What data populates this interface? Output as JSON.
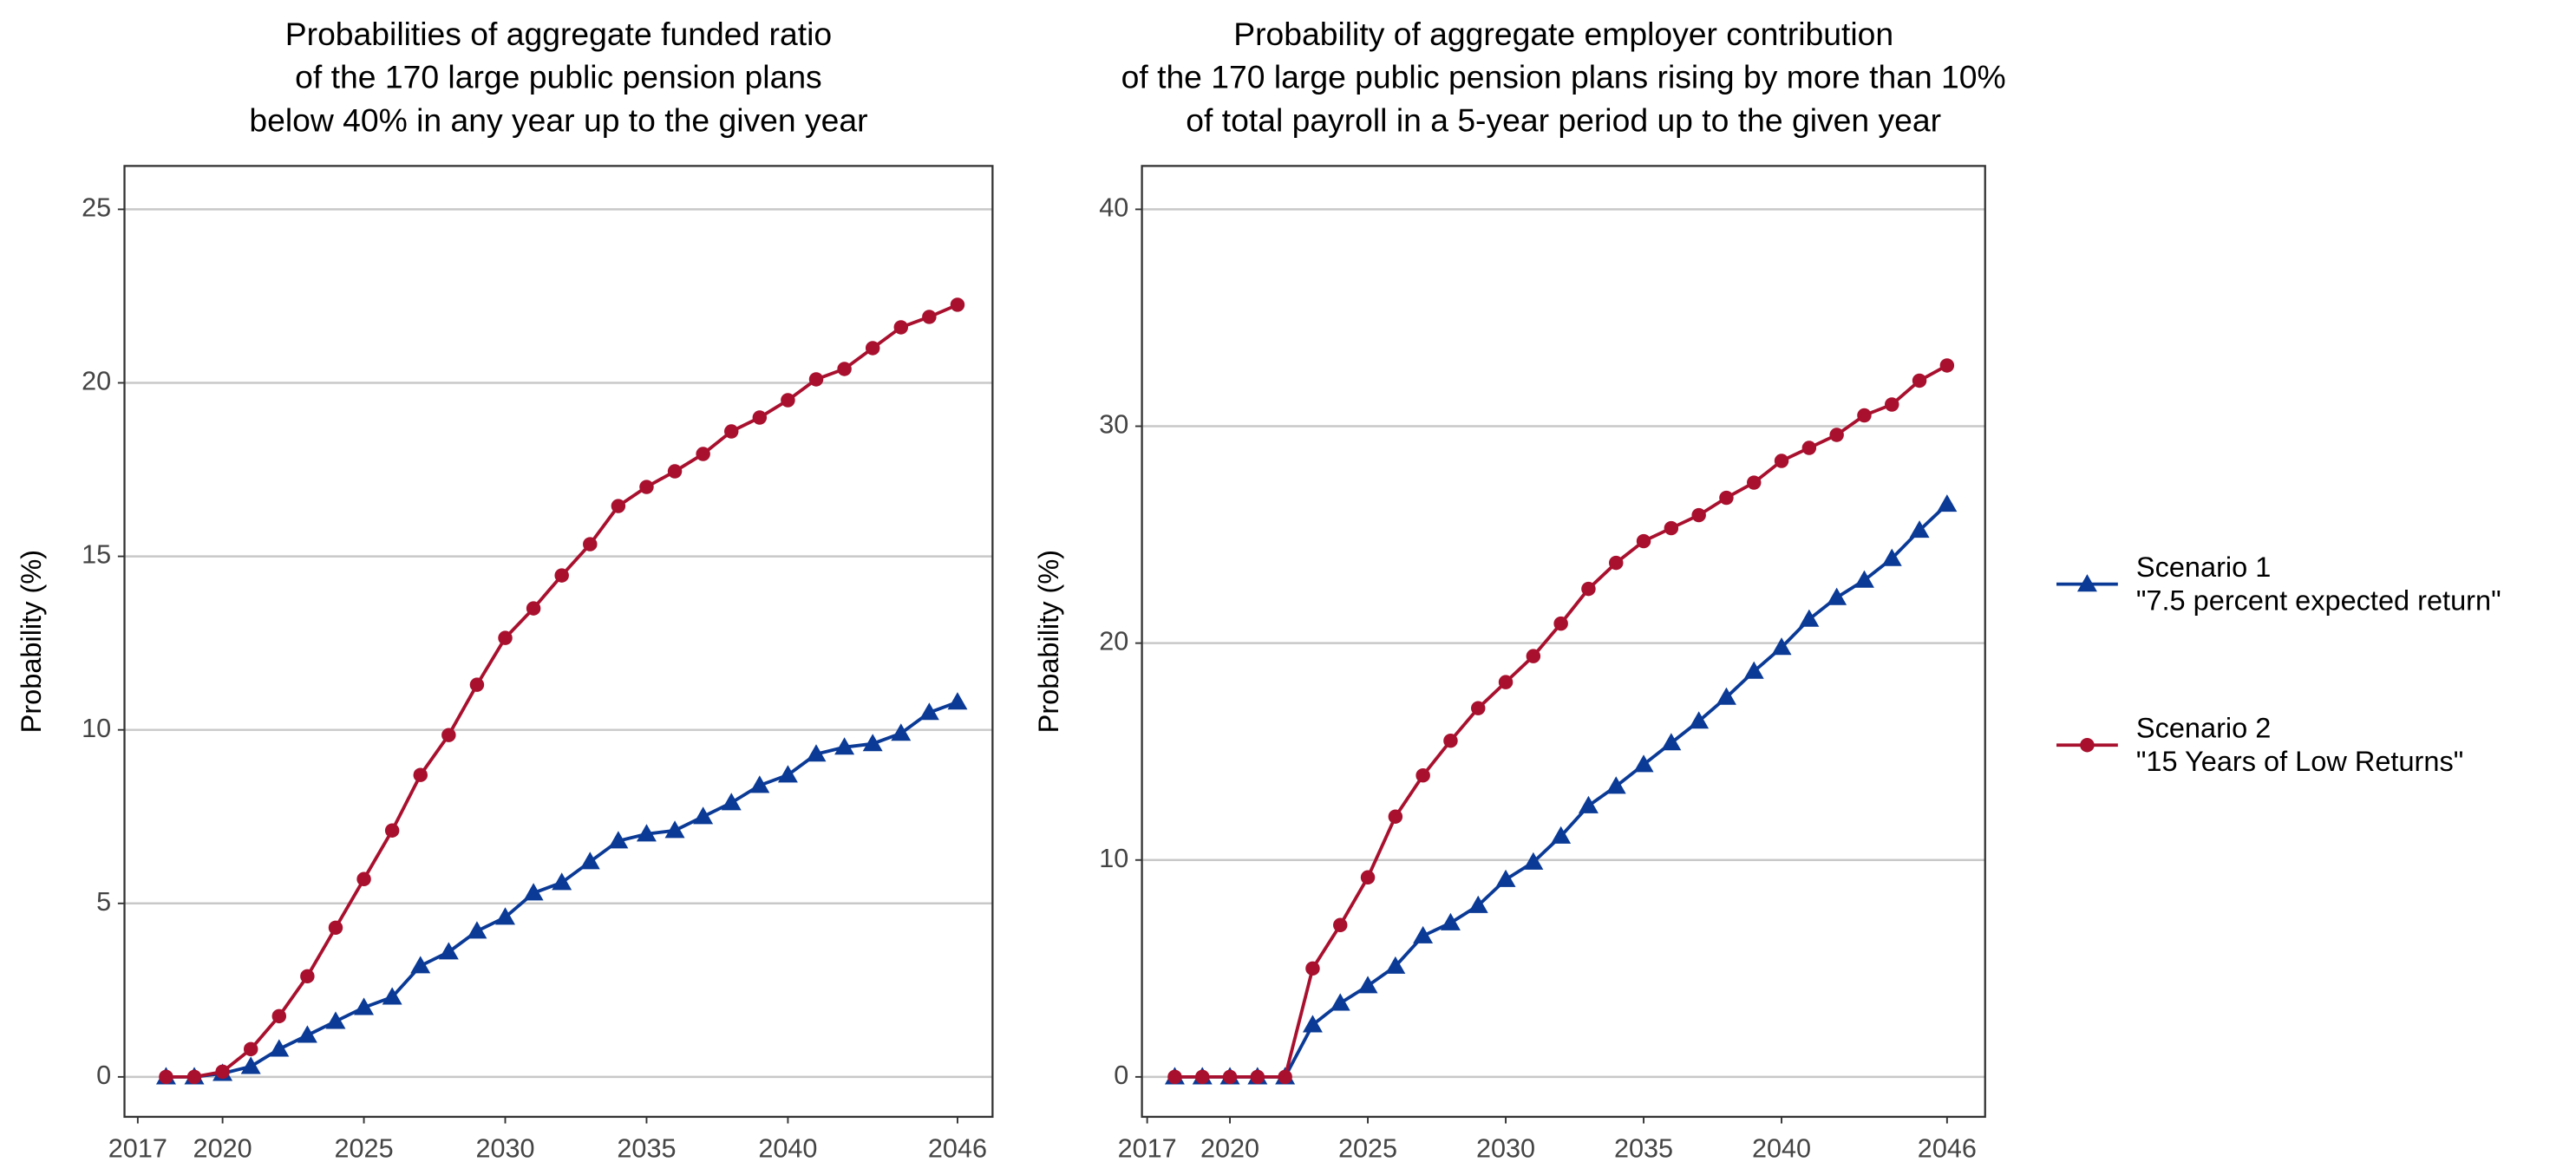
{
  "chart_data": [
    {
      "type": "line",
      "title": [
        "Probabilities of aggregate funded ratio",
        "of the 170 large public pension plans",
        "below 40% in any year up to the given year"
      ],
      "y_label": "Probability (%)",
      "x": [
        2018,
        2019,
        2020,
        2021,
        2022,
        2023,
        2024,
        2025,
        2026,
        2027,
        2028,
        2029,
        2030,
        2031,
        2032,
        2033,
        2034,
        2035,
        2036,
        2037,
        2038,
        2039,
        2040,
        2041,
        2042,
        2043,
        2044,
        2045,
        2046
      ],
      "series": [
        {
          "name": "Scenario 1",
          "description": "\"7.5 percent expected return\"",
          "color": "#0a3a96",
          "marker": "triangle",
          "values": [
            0,
            0,
            0.1,
            0.3,
            0.8,
            1.2,
            1.6,
            2.0,
            2.3,
            3.2,
            3.6,
            4.2,
            4.6,
            5.3,
            5.6,
            6.2,
            6.8,
            7.0,
            7.1,
            7.5,
            7.9,
            8.4,
            8.7,
            9.3,
            9.5,
            9.6,
            9.9,
            10.5,
            10.8
          ]
        },
        {
          "name": "Scenario 2",
          "description": "\"15 Years of Low Returns\"",
          "color": "#a8102e",
          "marker": "circle",
          "values": [
            0,
            0,
            0.15,
            0.8,
            1.75,
            2.9,
            4.3,
            5.7,
            7.1,
            8.7,
            9.85,
            11.3,
            12.65,
            13.5,
            14.45,
            15.35,
            16.45,
            17.0,
            17.45,
            17.95,
            18.6,
            19.0,
            19.5,
            20.1,
            20.4,
            21.0,
            21.6,
            21.9,
            22.25
          ]
        }
      ],
      "xlim": [
        2016.53,
        2047.24
      ],
      "xticks": [
        2017,
        2020,
        2025,
        2030,
        2035,
        2040,
        2046
      ],
      "ylim": [
        -1.15,
        26.25
      ],
      "yticks": [
        0,
        5,
        10,
        15,
        20,
        25
      ],
      "grid": true
    },
    {
      "type": "line",
      "title": [
        "Probability of aggregate employer contribution",
        "of the 170 large public pension plans rising by more than 10%",
        "of total payroll in a 5-year period up to the given year"
      ],
      "y_label": "Probability (%)",
      "x": [
        2018,
        2019,
        2020,
        2021,
        2022,
        2023,
        2024,
        2025,
        2026,
        2027,
        2028,
        2029,
        2030,
        2031,
        2032,
        2033,
        2034,
        2035,
        2036,
        2037,
        2038,
        2039,
        2040,
        2041,
        2042,
        2043,
        2044,
        2045,
        2046
      ],
      "series": [
        {
          "color": "#0a3a96",
          "marker": "triangle",
          "values": [
            0,
            0,
            0,
            0,
            0,
            2.4,
            3.4,
            4.2,
            5.1,
            6.5,
            7.1,
            7.9,
            9.1,
            9.9,
            11.1,
            12.5,
            13.4,
            14.4,
            15.4,
            16.4,
            17.5,
            18.7,
            19.8,
            21.1,
            22.1,
            22.9,
            23.9,
            25.2,
            26.4
          ]
        },
        {
          "color": "#a8102e",
          "marker": "circle",
          "values": [
            0,
            0,
            0,
            0,
            0,
            5.0,
            7.0,
            9.2,
            12.0,
            13.9,
            15.5,
            17.0,
            18.2,
            19.4,
            20.9,
            22.5,
            23.7,
            24.7,
            25.3,
            25.9,
            26.7,
            27.4,
            28.4,
            29.0,
            29.6,
            30.5,
            31.0,
            32.1,
            32.8
          ]
        }
      ],
      "xlim": [
        2016.81,
        2047.38
      ],
      "xticks": [
        2017,
        2020,
        2025,
        2030,
        2035,
        2040,
        2046
      ],
      "ylim": [
        -1.84,
        42.0
      ],
      "yticks": [
        0,
        10,
        20,
        30,
        40
      ],
      "grid": true
    }
  ]
}
